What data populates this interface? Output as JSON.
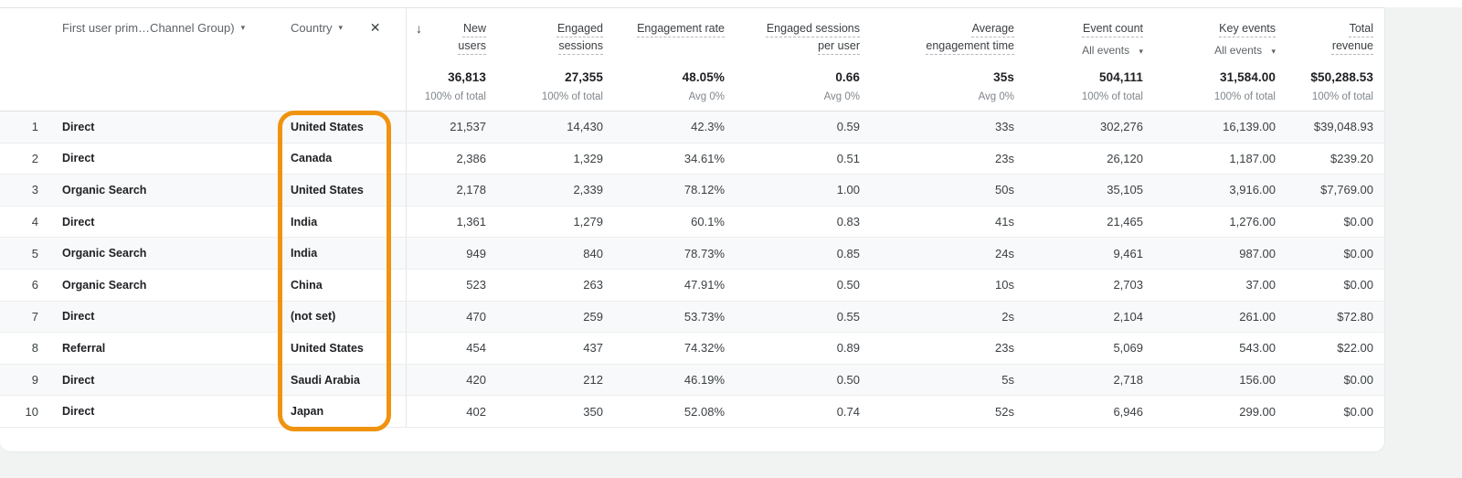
{
  "colors": {
    "highlight_orange": "#F0930F",
    "stripe_row": "#f8f9fa"
  },
  "icons": {
    "caret_down": "▾",
    "close": "✕",
    "sort_descending": "↓"
  },
  "header": {
    "primary_dimension": "First user prim…Channel Group)",
    "secondary_dimension": "Country"
  },
  "metrics": [
    {
      "label": "New users",
      "filter": null,
      "total": "36,813",
      "total_sub": "100% of total"
    },
    {
      "label": "Engaged sessions",
      "filter": null,
      "total": "27,355",
      "total_sub": "100% of total"
    },
    {
      "label": "Engagement rate",
      "filter": null,
      "total": "48.05%",
      "total_sub": "Avg 0%"
    },
    {
      "label": "Engaged sessions per user",
      "filter": null,
      "total": "0.66",
      "total_sub": "Avg 0%"
    },
    {
      "label": "Average engagement time",
      "filter": null,
      "total": "35s",
      "total_sub": "Avg 0%"
    },
    {
      "label": "Event count",
      "filter": "All events",
      "total": "504,111",
      "total_sub": "100% of total"
    },
    {
      "label": "Key events",
      "filter": "All events",
      "total": "31,584.00",
      "total_sub": "100% of total"
    },
    {
      "label": "Total revenue",
      "filter": null,
      "total": "$50,288.53",
      "total_sub": "100% of total"
    }
  ],
  "rows": [
    {
      "rank": "1",
      "channel": "Direct",
      "country": "United States",
      "values": [
        "21,537",
        "14,430",
        "42.3%",
        "0.59",
        "33s",
        "302,276",
        "16,139.00",
        "$39,048.93"
      ]
    },
    {
      "rank": "2",
      "channel": "Direct",
      "country": "Canada",
      "values": [
        "2,386",
        "1,329",
        "34.61%",
        "0.51",
        "23s",
        "26,120",
        "1,187.00",
        "$239.20"
      ]
    },
    {
      "rank": "3",
      "channel": "Organic Search",
      "country": "United States",
      "values": [
        "2,178",
        "2,339",
        "78.12%",
        "1.00",
        "50s",
        "35,105",
        "3,916.00",
        "$7,769.00"
      ]
    },
    {
      "rank": "4",
      "channel": "Direct",
      "country": "India",
      "values": [
        "1,361",
        "1,279",
        "60.1%",
        "0.83",
        "41s",
        "21,465",
        "1,276.00",
        "$0.00"
      ]
    },
    {
      "rank": "5",
      "channel": "Organic Search",
      "country": "India",
      "values": [
        "949",
        "840",
        "78.73%",
        "0.85",
        "24s",
        "9,461",
        "987.00",
        "$0.00"
      ]
    },
    {
      "rank": "6",
      "channel": "Organic Search",
      "country": "China",
      "values": [
        "523",
        "263",
        "47.91%",
        "0.50",
        "10s",
        "2,703",
        "37.00",
        "$0.00"
      ]
    },
    {
      "rank": "7",
      "channel": "Direct",
      "country": "(not set)",
      "values": [
        "470",
        "259",
        "53.73%",
        "0.55",
        "2s",
        "2,104",
        "261.00",
        "$72.80"
      ]
    },
    {
      "rank": "8",
      "channel": "Referral",
      "country": "United States",
      "values": [
        "454",
        "437",
        "74.32%",
        "0.89",
        "23s",
        "5,069",
        "543.00",
        "$22.00"
      ]
    },
    {
      "rank": "9",
      "channel": "Direct",
      "country": "Saudi Arabia",
      "values": [
        "420",
        "212",
        "46.19%",
        "0.50",
        "5s",
        "2,718",
        "156.00",
        "$0.00"
      ]
    },
    {
      "rank": "10",
      "channel": "Direct",
      "country": "Japan",
      "values": [
        "402",
        "350",
        "52.08%",
        "0.74",
        "52s",
        "6,946",
        "299.00",
        "$0.00"
      ]
    }
  ]
}
